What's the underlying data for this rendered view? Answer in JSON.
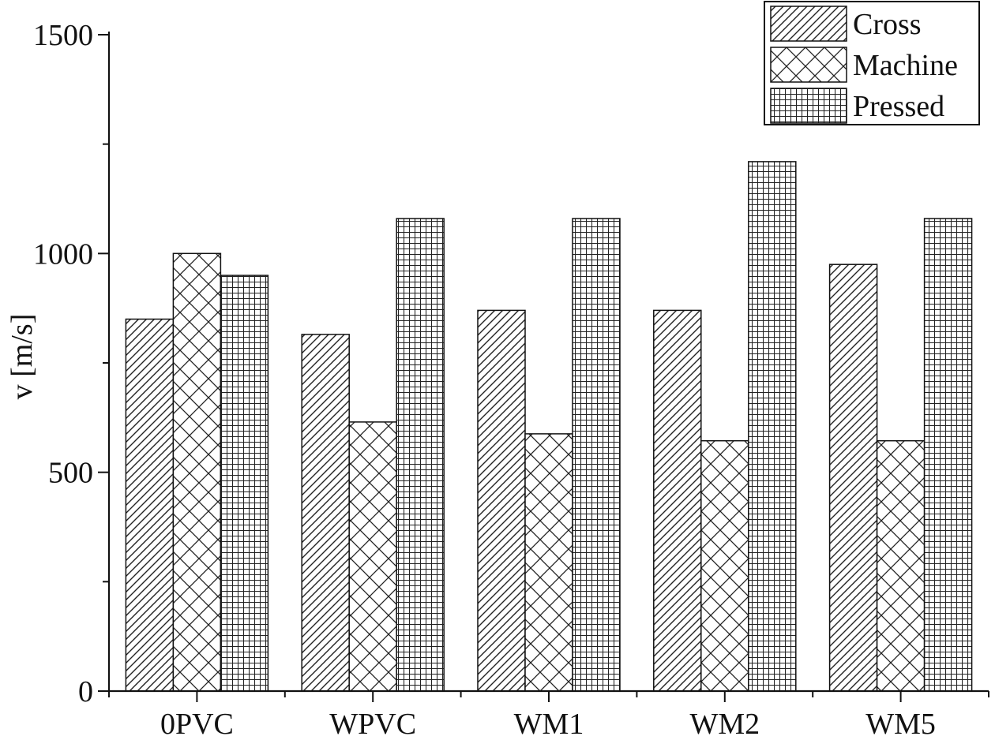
{
  "chart_data": {
    "type": "bar",
    "categories": [
      "0PVC",
      "WPVC",
      "WM1",
      "WM2",
      "WM5"
    ],
    "series": [
      {
        "name": "Cross",
        "pattern": "diagonal",
        "values": [
          850,
          815,
          870,
          870,
          975
        ]
      },
      {
        "name": "Machine",
        "pattern": "crosshatch",
        "values": [
          1000,
          615,
          588,
          572,
          572
        ]
      },
      {
        "name": "Pressed",
        "pattern": "grid",
        "values": [
          950,
          1080,
          1080,
          1210,
          1080
        ]
      }
    ],
    "title": "",
    "xlabel": "",
    "ylabel": "v [m/s]",
    "ylim": [
      0,
      1500
    ],
    "yticks_major": [
      0,
      500,
      1000,
      1500
    ],
    "yticks_minor": [
      250,
      750,
      1250
    ],
    "grid": false,
    "legend_position": "top-right",
    "colors": {
      "fill": "#ffffff",
      "stroke": "#111111",
      "hatch": "#222222"
    }
  }
}
